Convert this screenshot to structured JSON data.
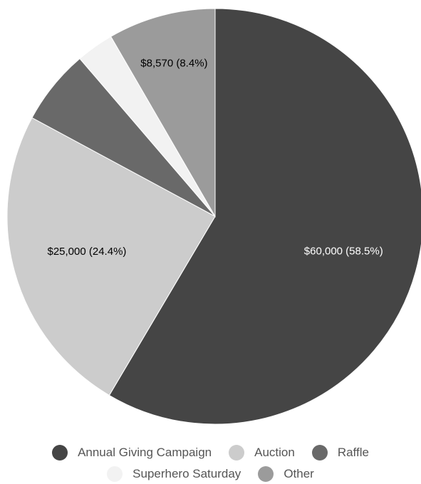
{
  "chart_data": {
    "type": "pie",
    "title": "",
    "start_angle_deg": 0,
    "direction": "clockwise",
    "slices": [
      {
        "name": "Annual Giving Campaign",
        "value": 60000,
        "label": "$60,000 (58.5%)",
        "color": "#454545",
        "label_color": "light"
      },
      {
        "name": "Auction",
        "value": 25000,
        "label": "$25,000 (24.4%)",
        "color": "#cccccc",
        "label_color": "dark"
      },
      {
        "name": "Raffle",
        "value": 6000,
        "label": "",
        "color": "#696969",
        "label_color": "light"
      },
      {
        "name": "Superhero Saturday",
        "value": 3000,
        "label": "",
        "color": "#f2f2f2",
        "label_color": "dark"
      },
      {
        "name": "Other",
        "value": 8570,
        "label": "$8,570 (8.4%)",
        "color": "#9b9b9b",
        "label_color": "dark"
      }
    ],
    "legend_position": "bottom"
  }
}
